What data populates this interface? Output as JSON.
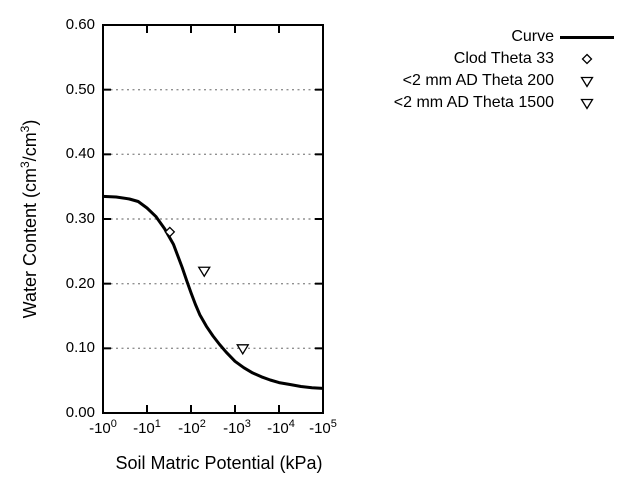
{
  "chart_data": {
    "type": "line",
    "title": "",
    "xlabel": "Soil Matric Potential (kPa)",
    "ylabel": "Water Content (cm3/cm3)",
    "ylabel_parts": {
      "pre": "Water Content (cm",
      "sup1": "3",
      "mid": "/cm",
      "sup2": "3",
      "post": ")"
    },
    "x_axis": {
      "scale": "log10 of absolute matric potential, negative axis",
      "range_log10_abs": [
        0,
        5
      ],
      "ticks": [
        {
          "base": "-10",
          "exp": "0"
        },
        {
          "base": "-10",
          "exp": "1"
        },
        {
          "base": "-10",
          "exp": "2"
        },
        {
          "base": "-10",
          "exp": "3"
        },
        {
          "base": "-10",
          "exp": "4"
        },
        {
          "base": "-10",
          "exp": "5"
        }
      ]
    },
    "y_axis": {
      "range": [
        0,
        0.6
      ],
      "ticks": [
        "0.60",
        "0.50",
        "0.40",
        "0.30",
        "0.20",
        "0.10",
        "0.00"
      ],
      "gridlines": [
        0.5,
        0.4,
        0.3,
        0.2,
        0.1
      ],
      "grid_style": "dotted"
    },
    "legend": [
      {
        "label": "Curve",
        "symbol": "line"
      },
      {
        "label": "Clod Theta 33",
        "symbol": "diamond"
      },
      {
        "label": "<2 mm AD Theta 200",
        "symbol": "triangle-down"
      },
      {
        "label": "<2 mm AD Theta 1500",
        "symbol": "triangle-down"
      }
    ],
    "series": [
      {
        "name": "Curve",
        "type": "line",
        "points_log10abs_theta": [
          [
            0.0,
            0.335
          ],
          [
            0.3,
            0.334
          ],
          [
            0.6,
            0.331
          ],
          [
            0.8,
            0.327
          ],
          [
            1.0,
            0.317
          ],
          [
            1.2,
            0.304
          ],
          [
            1.4,
            0.285
          ],
          [
            1.6,
            0.261
          ],
          [
            1.8,
            0.225
          ],
          [
            1.9,
            0.205
          ],
          [
            2.0,
            0.186
          ],
          [
            2.1,
            0.168
          ],
          [
            2.2,
            0.152
          ],
          [
            2.35,
            0.134
          ],
          [
            2.5,
            0.119
          ],
          [
            2.65,
            0.106
          ],
          [
            2.8,
            0.094
          ],
          [
            3.0,
            0.08
          ],
          [
            3.2,
            0.07
          ],
          [
            3.4,
            0.062
          ],
          [
            3.6,
            0.056
          ],
          [
            3.8,
            0.051
          ],
          [
            4.0,
            0.047
          ],
          [
            4.25,
            0.044
          ],
          [
            4.5,
            0.041
          ],
          [
            4.75,
            0.039
          ],
          [
            5.0,
            0.038
          ]
        ]
      },
      {
        "name": "Clod Theta 33",
        "type": "scatter",
        "marker": "diamond",
        "points": [
          {
            "kpa": -33,
            "theta": 0.28
          }
        ]
      },
      {
        "name": "<2 mm AD Theta 200",
        "type": "scatter",
        "marker": "triangle-down",
        "points": [
          {
            "kpa": -200,
            "theta": 0.22
          }
        ]
      },
      {
        "name": "<2 mm AD Theta 1500",
        "type": "scatter",
        "marker": "triangle-down",
        "points": [
          {
            "kpa": -1500,
            "theta": 0.1
          }
        ]
      }
    ],
    "colors": {
      "line": "#000000",
      "grid": "#909090",
      "text": "#000000",
      "background": "#ffffff"
    }
  }
}
